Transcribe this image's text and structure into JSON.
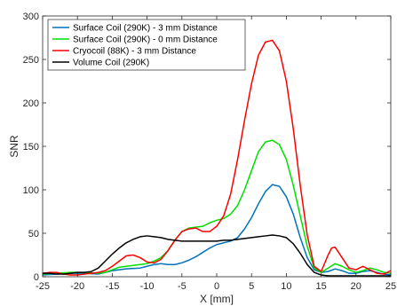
{
  "chart_data": {
    "type": "line",
    "title": "",
    "xlabel": "X [mm]",
    "ylabel": "SNR",
    "xlim": [
      -25,
      25
    ],
    "ylim": [
      0,
      300
    ],
    "xticks": [
      "-25",
      "-20",
      "-15",
      "-10",
      "-5",
      "0",
      "5",
      "10",
      "15",
      "20",
      "25"
    ],
    "yticks": [
      "0",
      "50",
      "100",
      "150",
      "200",
      "250",
      "300"
    ],
    "grid": false,
    "legend_position": "top-left",
    "series": [
      {
        "name": "Surface Coil (290K) - 3 mm Distance",
        "color": "#0072BD",
        "points": [
          [
            -25,
            2
          ],
          [
            -23,
            3
          ],
          [
            -21,
            4
          ],
          [
            -19,
            4
          ],
          [
            -17,
            3
          ],
          [
            -16,
            5
          ],
          [
            -15,
            7
          ],
          [
            -13,
            9
          ],
          [
            -11,
            10
          ],
          [
            -10,
            12
          ],
          [
            -9,
            14
          ],
          [
            -8,
            15
          ],
          [
            -7,
            14
          ],
          [
            -6,
            14
          ],
          [
            -5,
            16
          ],
          [
            -4,
            19
          ],
          [
            -3,
            23
          ],
          [
            -2,
            28
          ],
          [
            -1,
            33
          ],
          [
            0,
            37
          ],
          [
            1,
            39
          ],
          [
            2,
            41
          ],
          [
            3,
            45
          ],
          [
            4,
            55
          ],
          [
            5,
            68
          ],
          [
            6,
            84
          ],
          [
            7,
            98
          ],
          [
            8,
            106
          ],
          [
            9,
            104
          ],
          [
            10,
            92
          ],
          [
            11,
            72
          ],
          [
            12,
            45
          ],
          [
            13,
            22
          ],
          [
            14,
            8
          ],
          [
            15,
            5
          ],
          [
            16,
            6
          ],
          [
            17,
            9
          ],
          [
            18,
            7
          ],
          [
            19,
            4
          ],
          [
            20,
            4
          ],
          [
            21,
            6
          ],
          [
            22,
            7
          ],
          [
            23,
            5
          ],
          [
            24,
            3
          ],
          [
            25,
            2
          ]
        ]
      },
      {
        "name": "Surface Coil (290K) - 0 mm Distance",
        "color": "#00E000",
        "points": [
          [
            -25,
            3
          ],
          [
            -23,
            4
          ],
          [
            -21,
            5
          ],
          [
            -19,
            5
          ],
          [
            -17,
            4
          ],
          [
            -16,
            5
          ],
          [
            -15,
            8
          ],
          [
            -14,
            11
          ],
          [
            -13,
            12
          ],
          [
            -12,
            13
          ],
          [
            -11,
            14
          ],
          [
            -10,
            15
          ],
          [
            -9,
            18
          ],
          [
            -8,
            22
          ],
          [
            -7,
            30
          ],
          [
            -6,
            42
          ],
          [
            -5,
            52
          ],
          [
            -4,
            56
          ],
          [
            -3,
            57
          ],
          [
            -2,
            58
          ],
          [
            -1,
            62
          ],
          [
            0,
            65
          ],
          [
            1,
            67
          ],
          [
            2,
            72
          ],
          [
            3,
            82
          ],
          [
            4,
            100
          ],
          [
            5,
            122
          ],
          [
            6,
            144
          ],
          [
            7,
            155
          ],
          [
            8,
            157
          ],
          [
            9,
            152
          ],
          [
            10,
            135
          ],
          [
            11,
            105
          ],
          [
            12,
            70
          ],
          [
            13,
            35
          ],
          [
            14,
            10
          ],
          [
            15,
            5
          ],
          [
            16,
            10
          ],
          [
            17,
            15
          ],
          [
            18,
            12
          ],
          [
            19,
            8
          ],
          [
            20,
            5
          ],
          [
            21,
            7
          ],
          [
            22,
            10
          ],
          [
            23,
            8
          ],
          [
            24,
            5
          ],
          [
            25,
            4
          ]
        ]
      },
      {
        "name": "Cryocoil (88K) - 3 mm Distance",
        "color": "#FF0000",
        "points": [
          [
            -25,
            4
          ],
          [
            -24,
            5
          ],
          [
            -23,
            5
          ],
          [
            -22,
            3
          ],
          [
            -21,
            2
          ],
          [
            -20,
            2
          ],
          [
            -19,
            3
          ],
          [
            -18,
            4
          ],
          [
            -17,
            5
          ],
          [
            -16,
            7
          ],
          [
            -15,
            12
          ],
          [
            -14,
            18
          ],
          [
            -13,
            24
          ],
          [
            -12,
            25
          ],
          [
            -11,
            22
          ],
          [
            -10,
            17
          ],
          [
            -9,
            16
          ],
          [
            -8,
            20
          ],
          [
            -7,
            30
          ],
          [
            -6,
            42
          ],
          [
            -5,
            52
          ],
          [
            -4,
            55
          ],
          [
            -3,
            56
          ],
          [
            -2,
            52
          ],
          [
            -1,
            52
          ],
          [
            0,
            58
          ],
          [
            1,
            70
          ],
          [
            2,
            95
          ],
          [
            3,
            135
          ],
          [
            4,
            180
          ],
          [
            5,
            222
          ],
          [
            6,
            255
          ],
          [
            7,
            270
          ],
          [
            8,
            272
          ],
          [
            9,
            260
          ],
          [
            10,
            225
          ],
          [
            11,
            170
          ],
          [
            12,
            105
          ],
          [
            13,
            48
          ],
          [
            14,
            12
          ],
          [
            15,
            6
          ],
          [
            16,
            25
          ],
          [
            16.5,
            33
          ],
          [
            17,
            34
          ],
          [
            18,
            22
          ],
          [
            19,
            10
          ],
          [
            20,
            8
          ],
          [
            21,
            12
          ],
          [
            22,
            8
          ],
          [
            23,
            4
          ],
          [
            24,
            3
          ],
          [
            25,
            7
          ]
        ]
      },
      {
        "name": "Volume Coil (290K)",
        "color": "#000000",
        "points": [
          [
            -25,
            4
          ],
          [
            -24,
            4
          ],
          [
            -23,
            3
          ],
          [
            -22,
            3
          ],
          [
            -21,
            4
          ],
          [
            -20,
            5
          ],
          [
            -19,
            5
          ],
          [
            -18,
            6
          ],
          [
            -17,
            10
          ],
          [
            -16,
            18
          ],
          [
            -15,
            26
          ],
          [
            -14,
            33
          ],
          [
            -13,
            39
          ],
          [
            -12,
            43
          ],
          [
            -11,
            46
          ],
          [
            -10,
            47
          ],
          [
            -9,
            46
          ],
          [
            -8,
            45
          ],
          [
            -7,
            43
          ],
          [
            -6,
            42
          ],
          [
            -5,
            41
          ],
          [
            -4,
            41
          ],
          [
            -3,
            41
          ],
          [
            -2,
            41
          ],
          [
            -1,
            41
          ],
          [
            0,
            41
          ],
          [
            1,
            42
          ],
          [
            2,
            42
          ],
          [
            3,
            43
          ],
          [
            4,
            44
          ],
          [
            5,
            45
          ],
          [
            6,
            46
          ],
          [
            7,
            47
          ],
          [
            8,
            48
          ],
          [
            9,
            47
          ],
          [
            10,
            45
          ],
          [
            11,
            38
          ],
          [
            12,
            27
          ],
          [
            13,
            14
          ],
          [
            14,
            5
          ],
          [
            15,
            2
          ],
          [
            16,
            1
          ],
          [
            17,
            1
          ],
          [
            18,
            1
          ],
          [
            19,
            1
          ],
          [
            20,
            1
          ],
          [
            21,
            1
          ],
          [
            22,
            1
          ],
          [
            23,
            1
          ],
          [
            24,
            1
          ],
          [
            25,
            1
          ]
        ]
      }
    ]
  }
}
